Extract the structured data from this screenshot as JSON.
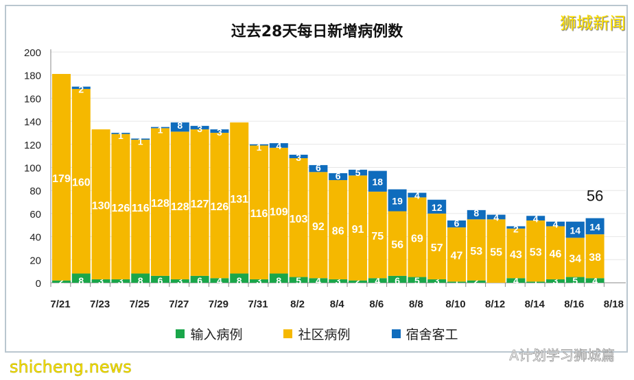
{
  "brand": "狮城新闻",
  "watermark": "shicheng.news",
  "wechat_watermark": "A计划学习狮城篇",
  "chart_data": {
    "type": "bar",
    "stacked": true,
    "title": "过去28天每日新增病例数",
    "categories": [
      "7/21",
      "7/22",
      "7/23",
      "7/24",
      "7/25",
      "7/26",
      "7/27",
      "7/28",
      "7/29",
      "7/30",
      "7/31",
      "8/1",
      "8/2",
      "8/3",
      "8/4",
      "8/5",
      "8/6",
      "8/7",
      "8/8",
      "8/9",
      "8/10",
      "8/11",
      "8/12",
      "8/13",
      "8/14",
      "8/15",
      "8/16",
      "8/17"
    ],
    "tick_labels": [
      "7/21",
      "7/23",
      "7/25",
      "7/27",
      "7/29",
      "7/31",
      "8/2",
      "8/4",
      "8/6",
      "8/8",
      "8/10",
      "8/12",
      "8/14",
      "8/16",
      "8/18"
    ],
    "ylim": [
      0,
      200
    ],
    "yticks": [
      0,
      20,
      40,
      60,
      80,
      100,
      120,
      140,
      160,
      180,
      200
    ],
    "grid": true,
    "legend_position": "bottom",
    "series": [
      {
        "name": "输入病例",
        "color": "#1aa64a",
        "values": [
          2,
          8,
          3,
          3,
          8,
          6,
          3,
          6,
          4,
          8,
          3,
          8,
          5,
          4,
          3,
          2,
          4,
          6,
          5,
          3,
          1,
          2,
          0,
          4,
          1,
          3,
          5,
          4
        ]
      },
      {
        "name": "社区病例",
        "color": "#f5b800",
        "values": [
          179,
          160,
          130,
          126,
          116,
          128,
          128,
          127,
          126,
          131,
          116,
          109,
          103,
          92,
          86,
          91,
          75,
          56,
          69,
          57,
          47,
          53,
          55,
          43,
          53,
          46,
          34,
          38
        ]
      },
      {
        "name": "宿舍客工",
        "color": "#0f6cbd",
        "values": [
          0,
          2,
          0,
          1,
          1,
          1,
          8,
          3,
          3,
          0,
          1,
          4,
          3,
          6,
          6,
          5,
          18,
          19,
          4,
          12,
          6,
          8,
          4,
          2,
          4,
          4,
          14,
          14
        ]
      }
    ],
    "annotations": [
      {
        "category": "8/17",
        "text": "56"
      }
    ]
  }
}
